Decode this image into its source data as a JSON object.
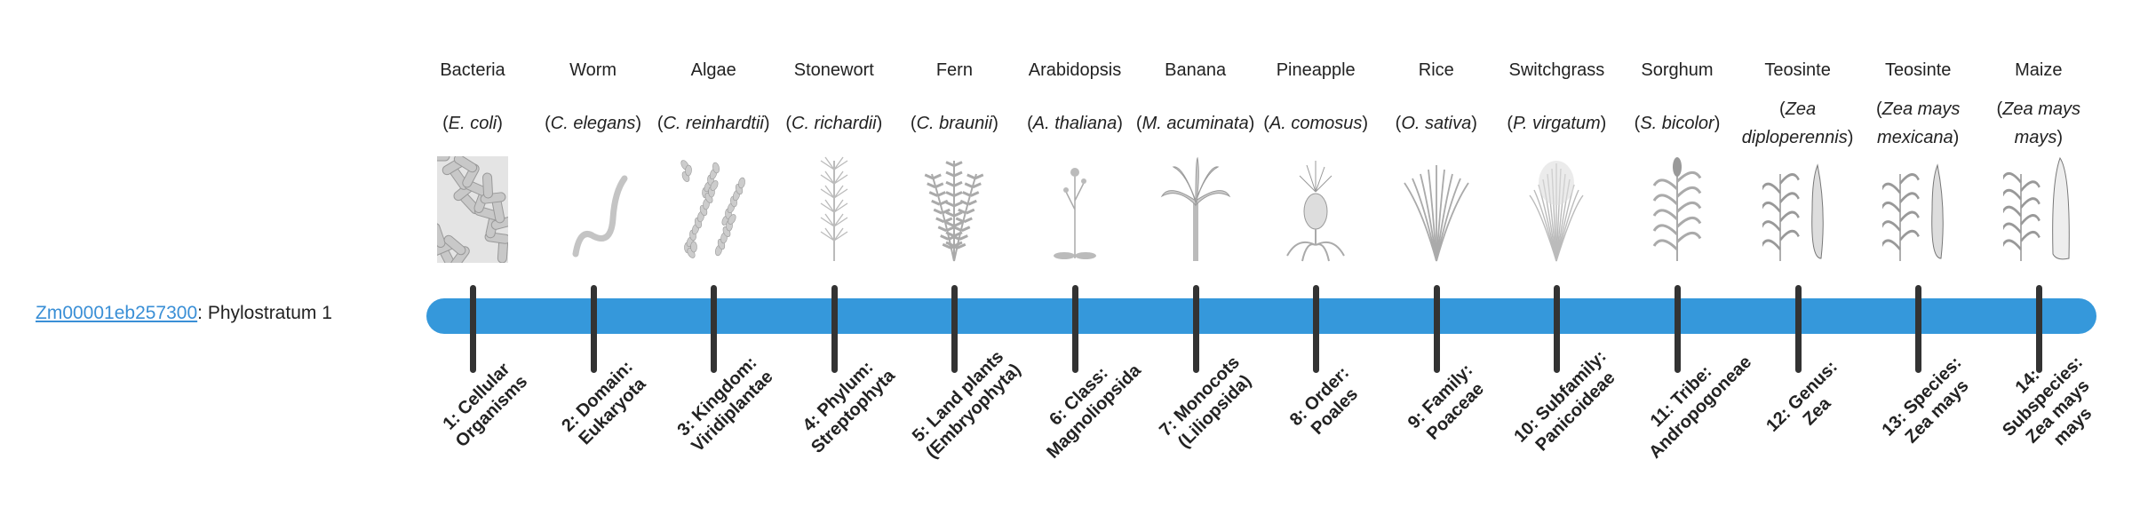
{
  "gene": {
    "id": "Zm00001eb257300",
    "suffix": ": Phylostratum 1"
  },
  "colors": {
    "bar": "#3598db",
    "tick": "#333333",
    "link": "#3a8fd6"
  },
  "organisms": [
    {
      "common": "Bacteria",
      "scientific": "E. coli",
      "icon": "bacteria-icon",
      "stratum": "1: Cellular Organisms"
    },
    {
      "common": "Worm",
      "scientific": "C. elegans",
      "icon": "worm-icon",
      "stratum": "2: Domain: Eukaryota"
    },
    {
      "common": "Algae",
      "scientific": "C. reinhardtii",
      "icon": "algae-icon",
      "stratum": "3: Kingdom: Viridiplantae"
    },
    {
      "common": "Stonewort",
      "scientific": "C. richardii",
      "icon": "stonewort-icon",
      "stratum": "4: Phylum: Streptophyta"
    },
    {
      "common": "Fern",
      "scientific": "C. braunii",
      "icon": "fern-icon",
      "stratum": "5: Land plants (Embryophyta)"
    },
    {
      "common": "Arabidopsis",
      "scientific": "A. thaliana",
      "icon": "arabidopsis-icon",
      "stratum": "6: Class: Magnoliopsida"
    },
    {
      "common": "Banana",
      "scientific": "M. acuminata",
      "icon": "banana-icon",
      "stratum": "7: Monocots (Liliopsida)"
    },
    {
      "common": "Pineapple",
      "scientific": "A. comosus",
      "icon": "pineapple-icon",
      "stratum": "8: Order: Poales"
    },
    {
      "common": "Rice",
      "scientific": "O. sativa",
      "icon": "rice-icon",
      "stratum": "9: Family: Poaceae"
    },
    {
      "common": "Switchgrass",
      "scientific": "P. virgatum",
      "icon": "switchgrass-icon",
      "stratum": "10: Subfamily: Panicoideae"
    },
    {
      "common": "Sorghum",
      "scientific": "S. bicolor",
      "icon": "sorghum-icon",
      "stratum": "11: Tribe: Andropogoneae"
    },
    {
      "common": "Teosinte",
      "scientific": "Zea diploperennis",
      "icon": "teosinte-icon",
      "stratum": "12: Genus: Zea"
    },
    {
      "common": "Teosinte",
      "scientific": "Zea mays mexicana",
      "icon": "teosinte-icon",
      "stratum": "13: Species: Zea mays"
    },
    {
      "common": "Maize",
      "scientific": "Zea mays mays",
      "icon": "maize-icon",
      "stratum": "14: Subspecies: Zea mays mays"
    }
  ]
}
